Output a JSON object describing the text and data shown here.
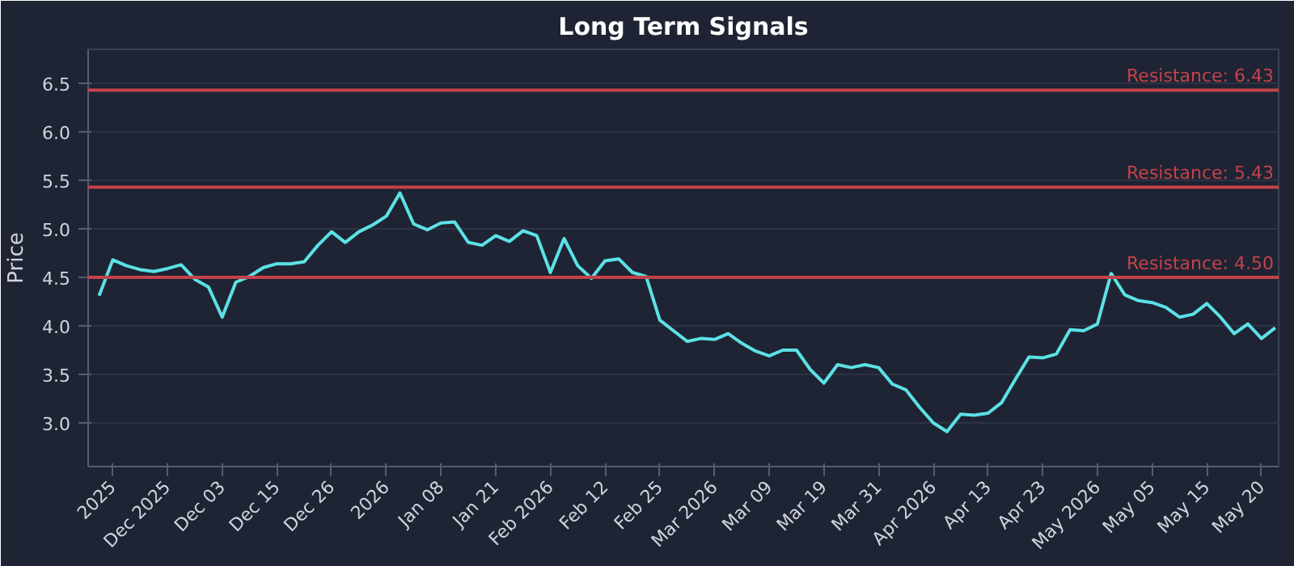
{
  "chart_data": {
    "type": "line",
    "title": "Long Term Signals",
    "ylabel": "Price",
    "categories": [
      null,
      "2025",
      null,
      null,
      null,
      "Dec 2025",
      null,
      null,
      null,
      "Dec 03",
      null,
      null,
      null,
      "Dec 15",
      null,
      null,
      null,
      "Dec 26",
      null,
      null,
      null,
      "2026",
      null,
      null,
      null,
      "Jan 08",
      null,
      null,
      null,
      "Jan 21",
      null,
      null,
      null,
      "Feb 2026",
      null,
      null,
      null,
      "Feb 12",
      null,
      null,
      null,
      "Feb 25",
      null,
      null,
      null,
      "Mar 2026",
      null,
      null,
      null,
      "Mar 09",
      null,
      null,
      null,
      "Mar 19",
      null,
      null,
      null,
      "Mar 31",
      null,
      null,
      null,
      "Apr 2026",
      null,
      null,
      null,
      "Apr 13",
      null,
      null,
      null,
      "Apr 23",
      null,
      null,
      null,
      "May 2026",
      null,
      null,
      null,
      "May 05",
      null,
      null,
      null,
      "May 15",
      null,
      null,
      null,
      "May 20",
      null
    ],
    "series": [
      {
        "color": "#5ce1e6",
        "values": [
          4.31,
          4.68,
          4.62,
          4.58,
          4.56,
          4.59,
          4.63,
          4.48,
          4.4,
          4.09,
          4.45,
          4.51,
          4.6,
          4.64,
          4.64,
          4.66,
          4.83,
          4.97,
          4.86,
          4.97,
          5.04,
          5.13,
          5.37,
          5.05,
          4.99,
          5.06,
          5.07,
          4.86,
          4.83,
          4.93,
          4.87,
          4.98,
          4.93,
          4.55,
          4.9,
          4.62,
          4.49,
          4.67,
          4.69,
          4.55,
          4.51,
          4.06,
          3.95,
          3.84,
          3.87,
          3.86,
          3.92,
          3.82,
          3.74,
          3.69,
          3.75,
          3.75,
          3.55,
          3.41,
          3.6,
          3.57,
          3.6,
          3.57,
          3.4,
          3.34,
          3.16,
          3.0,
          2.91,
          3.09,
          3.08,
          3.1,
          3.21,
          3.45,
          3.68,
          3.67,
          3.71,
          3.96,
          3.95,
          4.02,
          4.54,
          4.32,
          4.26,
          4.24,
          4.19,
          4.09,
          4.12,
          4.23,
          4.09,
          3.92,
          4.02,
          3.87,
          3.98
        ]
      }
    ],
    "ylim": [
      2.55,
      6.85
    ],
    "yticks": [
      {
        "value": 3,
        "label": "3.0"
      },
      {
        "value": 3.5,
        "label": "3.5"
      },
      {
        "value": 4,
        "label": "4.0"
      },
      {
        "value": 4.5,
        "label": "4.5"
      },
      {
        "value": 5,
        "label": "5.0"
      },
      {
        "value": 5.5,
        "label": "5.5"
      },
      {
        "value": 6,
        "label": "6.0"
      },
      {
        "value": 6.5,
        "label": "6.5"
      }
    ],
    "grid": "y",
    "line_style": "solid",
    "ref_lines": [
      {
        "axis": "y",
        "value": 6.43,
        "label": "Resistance: 6.43",
        "color": "#c4424b"
      },
      {
        "axis": "y",
        "value": 5.43,
        "label": "Resistance: 5.43",
        "color": "#c4424b"
      },
      {
        "axis": "y",
        "value": 4.5,
        "label": "Resistance: 4.50",
        "color": "#c4424b"
      }
    ]
  }
}
